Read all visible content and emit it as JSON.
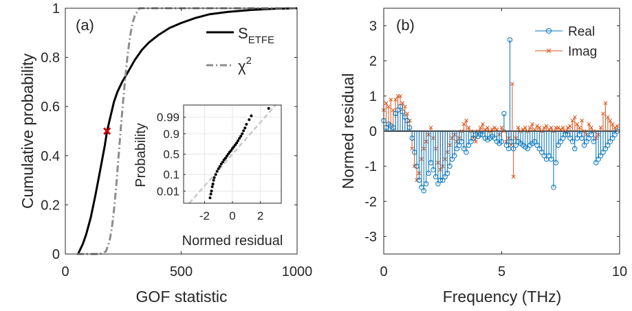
{
  "chart_data": [
    {
      "type": "line",
      "panel_label": "(a)",
      "xlabel": "GOF statistic",
      "ylabel": "Cumulative probability",
      "xlim": [
        0,
        1000
      ],
      "ylim": [
        0,
        1
      ],
      "xticks": [
        0,
        500,
        1000
      ],
      "yticks": [
        0,
        0.2,
        0.4,
        0.6,
        0.8,
        1
      ],
      "grid": false,
      "legend_position": "top-right",
      "series": [
        {
          "name": "S",
          "name_subscript": "ETFE",
          "style": "solid",
          "color": "#000000",
          "x": [
            55,
            65,
            75,
            90,
            110,
            130,
            150,
            170,
            180,
            195,
            210,
            225,
            245,
            270,
            300,
            330,
            360,
            400,
            450,
            500,
            560,
            620,
            700,
            800,
            900,
            1000
          ],
          "y": [
            0,
            0.02,
            0.04,
            0.08,
            0.15,
            0.24,
            0.34,
            0.44,
            0.5,
            0.56,
            0.62,
            0.66,
            0.7,
            0.74,
            0.79,
            0.83,
            0.86,
            0.89,
            0.92,
            0.94,
            0.96,
            0.975,
            0.985,
            0.993,
            0.998,
            1
          ]
        },
        {
          "name": "χ",
          "name_superscript": "2",
          "style": "dash-dot",
          "color": "#8c8c8c",
          "x": [
            50,
            150,
            175,
            190,
            200,
            210,
            220,
            230,
            240,
            250,
            260,
            270,
            280,
            290,
            300,
            320,
            1000
          ],
          "y": [
            0,
            0,
            0.01,
            0.05,
            0.1,
            0.18,
            0.28,
            0.4,
            0.52,
            0.63,
            0.73,
            0.82,
            0.89,
            0.94,
            0.97,
            1,
            1
          ]
        }
      ],
      "marker": {
        "x": 180,
        "y": 0.5,
        "symbol": "x",
        "color": "#cc0000"
      },
      "inset": {
        "type": "scatter",
        "xlabel": "Normed residual",
        "ylabel": "Probability",
        "xlim": [
          -3.5,
          3.5
        ],
        "xticks": [
          -2,
          0,
          2
        ],
        "yticks": [
          0.01,
          0.1,
          0.5,
          0.9,
          0.99
        ],
        "yticklabels": [
          "0.01",
          "0.1",
          "0.5",
          "0.9",
          "0.99"
        ],
        "grid": true,
        "reference_line": {
          "color": "#c8c8c8",
          "style": "dashed"
        },
        "points_x": [
          -1.6,
          -1.55,
          -1.5,
          -1.45,
          -1.4,
          -1.35,
          -1.3,
          -1.2,
          -1.1,
          -1.0,
          -0.9,
          -0.8,
          -0.7,
          -0.6,
          -0.5,
          -0.4,
          -0.3,
          -0.2,
          -0.1,
          0.0,
          0.1,
          0.2,
          0.3,
          0.4,
          0.5,
          0.6,
          0.7,
          0.8,
          0.9,
          1.0,
          1.2,
          1.35,
          2.6
        ],
        "points_p": [
          0.003,
          0.006,
          0.01,
          0.02,
          0.03,
          0.05,
          0.07,
          0.1,
          0.14,
          0.18,
          0.22,
          0.27,
          0.31,
          0.36,
          0.4,
          0.45,
          0.5,
          0.55,
          0.59,
          0.64,
          0.68,
          0.72,
          0.76,
          0.8,
          0.84,
          0.87,
          0.9,
          0.93,
          0.95,
          0.97,
          0.985,
          0.992,
          0.998
        ]
      }
    },
    {
      "type": "stem",
      "panel_label": "(b)",
      "xlabel": "Frequency (THz)",
      "ylabel": "Normed residual",
      "xlim": [
        0,
        10
      ],
      "ylim": [
        -3.5,
        3.5
      ],
      "xticks": [
        0,
        5,
        10
      ],
      "yticks": [
        -3,
        -2,
        -1,
        0,
        1,
        2,
        3
      ],
      "grid": false,
      "legend_position": "top-right",
      "series": [
        {
          "name": "Real",
          "marker": "o",
          "color": "#0072bd",
          "x": [
            0.0,
            0.1,
            0.2,
            0.3,
            0.4,
            0.5,
            0.6,
            0.7,
            0.8,
            0.9,
            1.0,
            1.1,
            1.2,
            1.3,
            1.4,
            1.5,
            1.6,
            1.7,
            1.8,
            1.9,
            2.0,
            2.1,
            2.2,
            2.3,
            2.4,
            2.5,
            2.6,
            2.7,
            2.8,
            2.9,
            3.0,
            3.1,
            3.2,
            3.3,
            3.4,
            3.5,
            3.6,
            3.7,
            3.8,
            3.9,
            4.0,
            4.1,
            4.2,
            4.3,
            4.4,
            4.5,
            4.6,
            4.7,
            4.8,
            4.9,
            5.0,
            5.1,
            5.2,
            5.3,
            5.35,
            5.4,
            5.5,
            5.6,
            5.7,
            5.8,
            5.9,
            6.0,
            6.1,
            6.2,
            6.3,
            6.4,
            6.5,
            6.6,
            6.7,
            6.8,
            6.9,
            7.0,
            7.1,
            7.2,
            7.3,
            7.4,
            7.5,
            7.6,
            7.7,
            7.8,
            7.9,
            8.0,
            8.1,
            8.2,
            8.3,
            8.4,
            8.5,
            8.6,
            8.7,
            8.8,
            8.9,
            9.0,
            9.1,
            9.2,
            9.3,
            9.4,
            9.5,
            9.6,
            9.7,
            9.8,
            9.9
          ],
          "y": [
            0.3,
            0.1,
            0.2,
            0.15,
            0.1,
            0.5,
            0.6,
            0.7,
            0.55,
            0.4,
            0.3,
            0.1,
            -0.2,
            -0.6,
            -1.0,
            -1.4,
            -1.6,
            -1.7,
            -1.5,
            -1.2,
            -0.9,
            -1.1,
            -1.3,
            -1.5,
            -1.4,
            -1.4,
            -1.3,
            -1.2,
            -1.0,
            -0.8,
            -0.7,
            -0.5,
            -0.4,
            -0.3,
            -0.5,
            -0.6,
            -0.4,
            -0.3,
            -0.2,
            -0.1,
            -0.15,
            -0.1,
            -0.1,
            -0.2,
            -0.25,
            -0.2,
            -0.15,
            -0.2,
            -0.3,
            -0.35,
            -0.3,
            0.5,
            -0.4,
            -0.5,
            2.6,
            -0.3,
            -0.5,
            -0.4,
            -0.3,
            -0.35,
            -0.4,
            -0.45,
            -0.5,
            -0.4,
            -0.35,
            -0.3,
            -0.4,
            -0.5,
            -0.6,
            -0.7,
            -0.8,
            -0.7,
            -0.8,
            -1.6,
            -0.9,
            -0.4,
            -0.3,
            -0.2,
            -0.1,
            -0.1,
            -0.2,
            -0.3,
            -0.5,
            -0.2,
            -0.1,
            -0.2,
            -0.4,
            -0.3,
            -0.2,
            -0.1,
            -0.3,
            -0.9,
            -0.8,
            -0.7,
            -0.6,
            -0.5,
            -0.4,
            -0.3,
            -0.2,
            -0.1,
            0.0
          ]
        },
        {
          "name": "Imag",
          "marker": "x",
          "color": "#d95319",
          "x": [
            0.0,
            0.1,
            0.2,
            0.3,
            0.4,
            0.5,
            0.6,
            0.7,
            0.8,
            0.9,
            1.0,
            1.1,
            1.2,
            1.3,
            1.4,
            1.5,
            1.6,
            1.7,
            1.8,
            1.9,
            2.0,
            2.1,
            2.2,
            2.3,
            2.4,
            2.5,
            2.6,
            2.7,
            2.8,
            2.9,
            3.0,
            3.1,
            3.2,
            3.3,
            3.4,
            3.5,
            3.6,
            3.7,
            3.8,
            3.9,
            4.0,
            4.1,
            4.2,
            4.3,
            4.4,
            4.5,
            4.6,
            4.7,
            4.8,
            4.9,
            5.0,
            5.1,
            5.2,
            5.3,
            5.4,
            5.45,
            5.5,
            5.6,
            5.7,
            5.8,
            5.9,
            6.0,
            6.1,
            6.2,
            6.3,
            6.4,
            6.5,
            6.6,
            6.7,
            6.8,
            6.9,
            7.0,
            7.1,
            7.2,
            7.3,
            7.4,
            7.5,
            7.6,
            7.7,
            7.8,
            7.9,
            8.0,
            8.1,
            8.2,
            8.3,
            8.4,
            8.5,
            8.6,
            8.7,
            8.8,
            8.9,
            9.0,
            9.1,
            9.2,
            9.3,
            9.4,
            9.5,
            9.6,
            9.7,
            9.8,
            9.9
          ],
          "y": [
            0.6,
            0.8,
            0.7,
            0.9,
            0.6,
            0.9,
            1.0,
            1.0,
            0.8,
            0.7,
            0.5,
            0.3,
            -0.5,
            -1.0,
            -1.4,
            -1.2,
            -0.8,
            -0.5,
            -0.3,
            -0.1,
            0.1,
            -0.2,
            -0.5,
            -0.9,
            -1.1,
            -1.0,
            -0.8,
            -0.6,
            -0.4,
            -0.2,
            -0.1,
            -0.3,
            -0.2,
            0.0,
            0.2,
            0.3,
            0.1,
            0.0,
            -0.2,
            -0.3,
            0.0,
            0.1,
            0.2,
            0.05,
            0.1,
            0.0,
            0.05,
            0.1,
            0.05,
            -0.1,
            0.1,
            0.0,
            -0.3,
            -0.2,
            -0.4,
            1.35,
            -1.3,
            -0.2,
            0.1,
            0.0,
            0.05,
            0.1,
            0.0,
            0.1,
            0.2,
            0.05,
            0.15,
            0.1,
            0.0,
            0.1,
            0.15,
            0.05,
            0.1,
            0.0,
            0.1,
            0.1,
            0.05,
            0.1,
            0.0,
            0.1,
            0.15,
            0.3,
            0.4,
            0.2,
            0.1,
            0.3,
            0.0,
            -0.1,
            0.2,
            0.1,
            0.0,
            -0.2,
            -0.1,
            0.1,
            0.5,
            0.8,
            0.4,
            0.3,
            0.2,
            0.1,
            0.15
          ]
        }
      ]
    }
  ]
}
